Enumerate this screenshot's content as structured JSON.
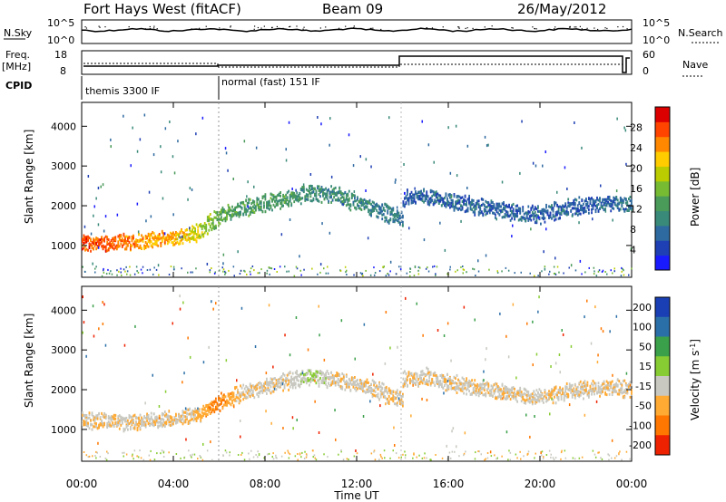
{
  "header": {
    "title": "Fort Hays West (fitACF)",
    "beam": "Beam 09",
    "date": "26/May/2012"
  },
  "noise_panel": {
    "left_label": "N.Sky",
    "left_ticks": [
      "10^5",
      "10^0"
    ],
    "right_label": "N.Search",
    "right_ticks": [
      "10^5",
      "10^0"
    ]
  },
  "freq_panel": {
    "left_label_1": "Freq.",
    "left_label_2": "[MHz]",
    "left_ticks": [
      "18",
      "8"
    ],
    "right_label": "Nave",
    "right_ticks": [
      "60",
      "0"
    ]
  },
  "cpid_panel": {
    "label": "CPID",
    "segments": [
      {
        "start_hour": 0,
        "end_hour": 6,
        "name": "themis 3300 IF"
      },
      {
        "start_hour": 6,
        "end_hour": 24,
        "name": "normal (fast) 151 IF"
      }
    ]
  },
  "time_axis": {
    "label": "Time UT",
    "ticks": [
      "00:00",
      "04:00",
      "08:00",
      "12:00",
      "16:00",
      "20:00",
      "00:00"
    ]
  },
  "power_panel": {
    "ylabel": "Slant Range [km]",
    "yticks": [
      "1000",
      "2000",
      "3000",
      "4000"
    ],
    "colorbar_label": "Power [dB]",
    "colorbar_ticks": [
      "4",
      "8",
      "12",
      "16",
      "20",
      "24",
      "28"
    ],
    "colors": [
      "#1a1aff",
      "#1f3fb4",
      "#2e6aa0",
      "#3a8a7a",
      "#4a9a5a",
      "#77bb33",
      "#bbcc00",
      "#ffcc00",
      "#ff8800",
      "#ff4400",
      "#dd0000"
    ]
  },
  "velocity_panel": {
    "ylabel": "Slant Range [km]",
    "yticks": [
      "1000",
      "2000",
      "3000",
      "4000"
    ],
    "colorbar_label": "Velocity [m s^-1]",
    "colorbar_ticks": [
      "200",
      "100",
      "50",
      "15",
      "-15",
      "-50",
      "-100",
      "-200"
    ],
    "colors": [
      "#1a3fb4",
      "#2b6fa8",
      "#3aa04a",
      "#88cc33",
      "#c8c8c0",
      "#ffaa33",
      "#ff7700",
      "#ee2200"
    ]
  },
  "chart_data": [
    {
      "type": "heatmap",
      "title": "Power",
      "xlabel": "Time UT",
      "ylabel": "Slant Range [km]",
      "xlim": [
        0,
        24
      ],
      "ylim": [
        200,
        4600
      ],
      "colorbar": {
        "label": "Power [dB]",
        "range": [
          0,
          32
        ]
      },
      "bands": [
        {
          "hours": [
            0,
            1,
            2,
            3,
            4,
            5,
            6,
            7,
            8,
            9,
            10,
            11,
            12,
            13,
            14
          ],
          "range_km": [
            1100,
            1080,
            1100,
            1150,
            1200,
            1350,
            1750,
            1950,
            2100,
            2200,
            2350,
            2300,
            2100,
            1900,
            1700
          ],
          "power_db": [
            28,
            28,
            26,
            25,
            24,
            20,
            14,
            12,
            12,
            12,
            10,
            10,
            10,
            8,
            8
          ]
        },
        {
          "hours": [
            14,
            15,
            16,
            17,
            18,
            19,
            20,
            21,
            22,
            23,
            24
          ],
          "range_km": [
            2200,
            2300,
            2150,
            2050,
            1950,
            1850,
            1800,
            1950,
            2050,
            2100,
            2050
          ],
          "power_db": [
            4,
            6,
            6,
            6,
            6,
            6,
            6,
            6,
            6,
            6,
            8
          ]
        }
      ]
    },
    {
      "type": "heatmap",
      "title": "Velocity",
      "xlabel": "Time UT",
      "ylabel": "Slant Range [km]",
      "xlim": [
        0,
        24
      ],
      "ylim": [
        200,
        4600
      ],
      "colorbar": {
        "label": "Velocity [m s^-1]",
        "range": [
          -200,
          200
        ]
      },
      "bands": [
        {
          "hours": [
            0,
            1,
            2,
            3,
            4,
            5,
            6,
            7,
            8,
            9,
            10,
            11,
            12,
            13,
            14
          ],
          "range_km": [
            1250,
            1250,
            1200,
            1250,
            1300,
            1400,
            1700,
            1950,
            2100,
            2250,
            2350,
            2300,
            2150,
            2000,
            1750
          ],
          "velocity": [
            -10,
            -10,
            -10,
            -10,
            -10,
            -20,
            -60,
            -10,
            -10,
            -10,
            20,
            -10,
            -10,
            -10,
            -10
          ]
        },
        {
          "hours": [
            14,
            15,
            16,
            17,
            18,
            19,
            20,
            21,
            22,
            23,
            24
          ],
          "range_km": [
            2300,
            2350,
            2200,
            2100,
            2000,
            1900,
            1850,
            1950,
            2050,
            2100,
            2050
          ],
          "velocity": [
            -10,
            -10,
            -10,
            -10,
            -10,
            -10,
            -10,
            -10,
            -10,
            -10,
            -10
          ]
        }
      ]
    }
  ]
}
